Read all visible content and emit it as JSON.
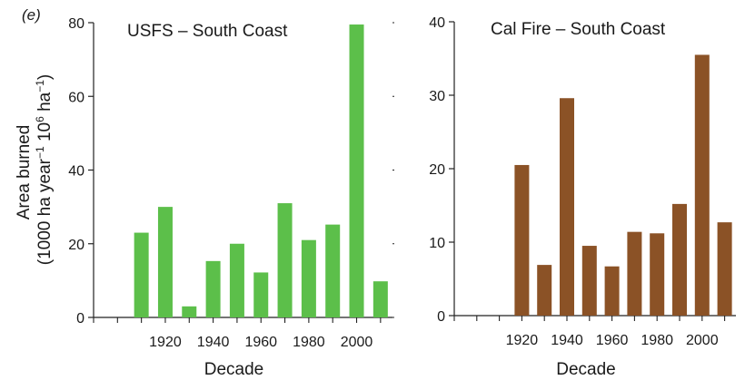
{
  "panel_label": "(e)",
  "ylabel_line1": "Area burned",
  "ylabel_line2_prefix": "(1000 ha year",
  "ylabel_sup1": "−1",
  "ylabel_line2_mid": " 10",
  "ylabel_sup2": "6",
  "ylabel_line2_suffix": " ha",
  "ylabel_sup3": "−1",
  "ylabel_line2_close": ")",
  "chart_data": [
    {
      "type": "bar",
      "title": "USFS – South Coast",
      "xlabel": "Decade",
      "ylabel": "Area burned (1000 ha year−1 10^6 ha−1)",
      "x": [
        1910,
        1920,
        1930,
        1940,
        1950,
        1960,
        1970,
        1980,
        1990,
        2000,
        2010
      ],
      "values": [
        23,
        30,
        3,
        15.3,
        20,
        12.2,
        31,
        21,
        25.2,
        79.5,
        9.8
      ],
      "xticks": [
        1920,
        1940,
        1960,
        1980,
        2000
      ],
      "xlim": [
        1890,
        2015
      ],
      "ylim": [
        0,
        80
      ],
      "yticks": [
        0,
        20,
        40,
        60,
        80
      ],
      "color": "#5cbf4a"
    },
    {
      "type": "bar",
      "title": "Cal Fire – South Coast",
      "xlabel": "Decade",
      "x": [
        1920,
        1930,
        1940,
        1950,
        1960,
        1970,
        1980,
        1990,
        2000,
        2010
      ],
      "values": [
        20.5,
        6.9,
        29.6,
        9.5,
        6.7,
        11.4,
        11.2,
        15.2,
        35.5,
        12.7
      ],
      "xticks": [
        1920,
        1940,
        1960,
        1980,
        2000
      ],
      "xlim": [
        1890,
        2015
      ],
      "ylim": [
        0,
        40
      ],
      "yticks": [
        0,
        10,
        20,
        30,
        40
      ],
      "color": "#8b5226"
    }
  ]
}
